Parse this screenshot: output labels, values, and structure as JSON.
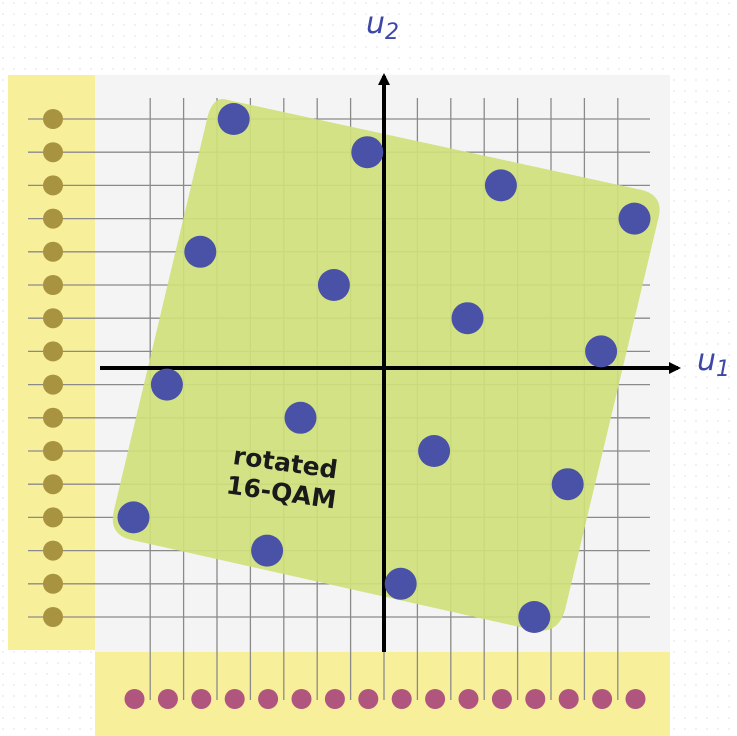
{
  "axes": {
    "x_label": "u",
    "x_subscript": "1",
    "y_label": "u",
    "y_subscript": "2"
  },
  "region_caption": [
    "rotated",
    "16-QAM"
  ],
  "colors": {
    "background_dots": "#ececec",
    "side_band": "#f8ef9a",
    "inner_field": "#f4f4f4",
    "grid_line": "#8a8a8a",
    "region_fill": "#cfe07a",
    "constellation_point": "#4a52a8",
    "label_color": "#3d47a5",
    "axis_color": "#000000",
    "y_projection_dot": "#a89440",
    "x_projection_dot": "#b0567e"
  },
  "chart_data": {
    "type": "scatter",
    "description": "rotated 16-QAM constellation with projections onto the u1 and u2 axes",
    "grid": {
      "x_ticks": [
        -7,
        -6,
        -5,
        -4,
        -3,
        -2,
        -1,
        0,
        1,
        2,
        3,
        4,
        5,
        6,
        7
      ],
      "y_ticks": [
        -7.5,
        -6.5,
        -5.5,
        -4.5,
        -3.5,
        -2.5,
        -1.5,
        -0.5,
        0.5,
        1.5,
        2.5,
        3.5,
        4.5,
        5.5,
        6.5,
        7.5
      ]
    },
    "xlim": [
      -8.5,
      8.8
    ],
    "ylim": [
      -8.5,
      8.6
    ],
    "points": [
      {
        "x": -4.5,
        "y": 7.5
      },
      {
        "x": -0.5,
        "y": 6.5
      },
      {
        "x": 3.5,
        "y": 5.5
      },
      {
        "x": 7.5,
        "y": 4.5
      },
      {
        "x": -5.5,
        "y": 3.5
      },
      {
        "x": -1.5,
        "y": 2.5
      },
      {
        "x": 2.5,
        "y": 1.5
      },
      {
        "x": 6.5,
        "y": 0.5
      },
      {
        "x": -6.5,
        "y": -0.5
      },
      {
        "x": -2.5,
        "y": -1.5
      },
      {
        "x": 1.5,
        "y": -2.5
      },
      {
        "x": 5.5,
        "y": -3.5
      },
      {
        "x": -7.5,
        "y": -4.5
      },
      {
        "x": -3.5,
        "y": -5.5
      },
      {
        "x": 0.5,
        "y": -6.5
      },
      {
        "x": 4.5,
        "y": -7.5
      }
    ],
    "x_projections": [
      -7.5,
      -6.5,
      -5.5,
      -4.5,
      -3.5,
      -2.5,
      -1.5,
      -0.5,
      0.5,
      1.5,
      2.5,
      3.5,
      4.5,
      5.5,
      6.5,
      7.5
    ],
    "y_projections": [
      -7.5,
      -6.5,
      -5.5,
      -4.5,
      -3.5,
      -2.5,
      -1.5,
      -0.5,
      0.5,
      1.5,
      2.5,
      3.5,
      4.5,
      5.5,
      6.5,
      7.5
    ]
  }
}
